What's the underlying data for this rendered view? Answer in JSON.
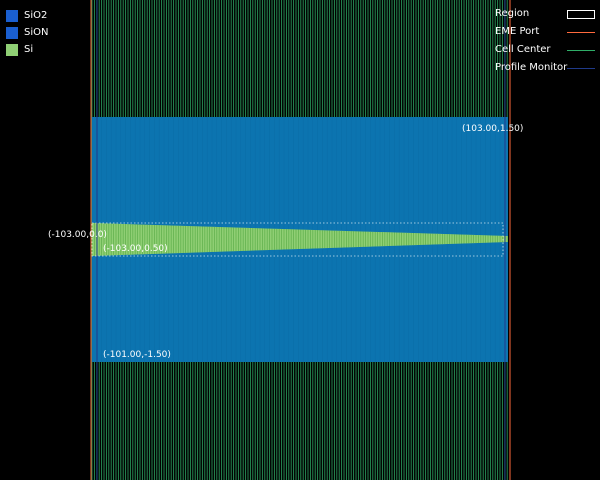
{
  "materials": [
    {
      "name": "SiO2",
      "color": "#1a5fd0",
      "icon": "swatch"
    },
    {
      "name": "SiON",
      "color": "#1a5fd0",
      "icon": "swatch"
    },
    {
      "name": "Si",
      "color": "#8fcf74",
      "icon": "swatch"
    }
  ],
  "objects": [
    {
      "name": "Region",
      "color": "#ffffff",
      "style": "box"
    },
    {
      "name": "EME Port",
      "color": "#ff6a3d",
      "style": "line"
    },
    {
      "name": "Cell Center",
      "color": "#2fae68",
      "style": "line"
    },
    {
      "name": "Profile Monitor",
      "color": "#1f3a8a",
      "style": "line"
    }
  ],
  "coords": {
    "top_right": "(103.00,1.50)",
    "mid_left": "(-103.00,0.0)",
    "mid_sub": "(-103.00,0.50)",
    "bottom_left": "(-101.00,-1.50)"
  },
  "colors": {
    "background": "#000000",
    "cladding": "#0c74b0",
    "core": "#8fcf74",
    "cell_line": "#2fae68",
    "port": "#ff6a3d"
  }
}
